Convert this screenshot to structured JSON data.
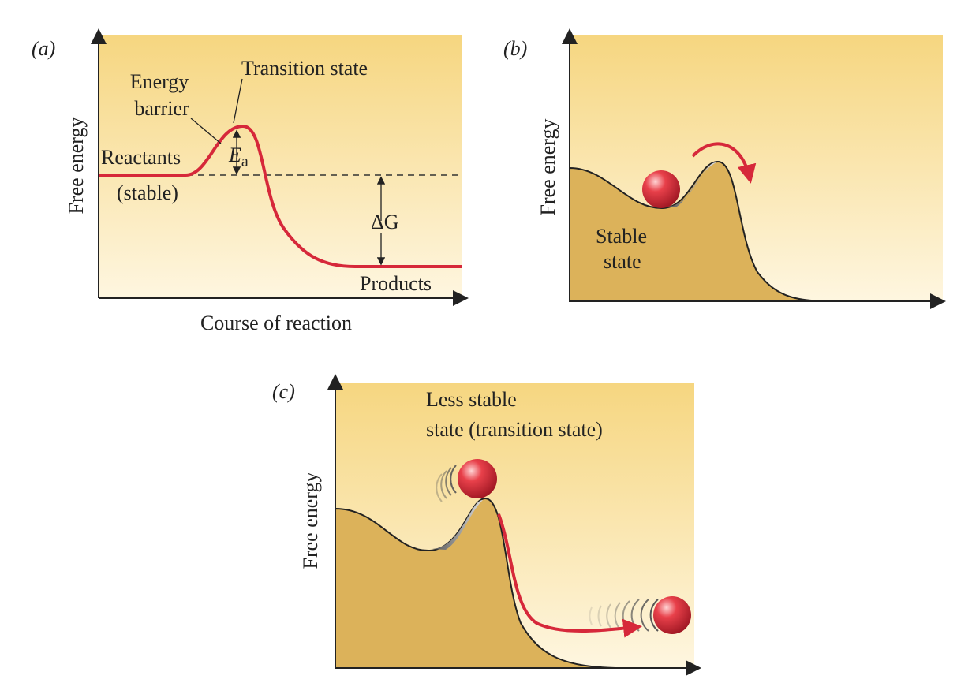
{
  "panels": [
    {
      "label": "(a)",
      "y_axis_label": "Free energy",
      "x_axis_label": "Course of reaction",
      "annotations": {
        "energy_barrier": [
          "Energy",
          "barrier"
        ],
        "transition_state": "Transition state",
        "reactants": [
          "Reactants",
          "(stable)"
        ],
        "activation_energy": {
          "symbol": "E",
          "subscript": "a"
        },
        "delta_g": "ΔG",
        "products": "Products"
      }
    },
    {
      "label": "(b)",
      "y_axis_label": "Free energy",
      "annotations": {
        "stable_state": [
          "Stable",
          "state"
        ]
      }
    },
    {
      "label": "(c)",
      "y_axis_label": "Free energy",
      "annotations": {
        "less_stable_state": [
          "Less stable",
          "state (transition state)"
        ]
      }
    }
  ]
}
